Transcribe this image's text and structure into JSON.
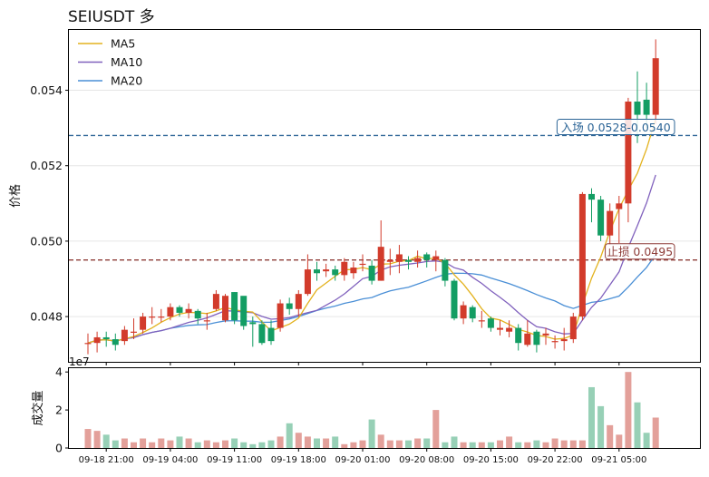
{
  "chart_data": {
    "type": "candlestick",
    "title": "SEIUSDT  多",
    "ylabel": "价格",
    "volume_ylabel": "成交量",
    "volume_scale_label": "1e7",
    "ylim": [
      0.0468,
      0.0556
    ],
    "volume_ylim": [
      0,
      4.2
    ],
    "price_ticks": [
      "0.048",
      "0.050",
      "0.052",
      "0.054"
    ],
    "volume_ticks": [
      "0",
      "2",
      "4"
    ],
    "x_tick_labels": [
      "09-18 21:00",
      "09-19 04:00",
      "09-19 11:00",
      "09-19 18:00",
      "09-20 01:00",
      "09-20 08:00",
      "09-20 15:00",
      "09-20 22:00",
      "09-21 05:00"
    ],
    "x_tick_indices": [
      2,
      9,
      16,
      23,
      30,
      37,
      44,
      51,
      58
    ],
    "legend": [
      "MA5",
      "MA10",
      "MA20"
    ],
    "legend_position": "top-left",
    "colors": {
      "up": "#d23b2b",
      "down": "#139d63",
      "up_volume": "#e3a09a",
      "down_volume": "#97d0b6",
      "ma5": "#e3b21e",
      "ma10": "#8061bd",
      "ma20": "#4a8fd6",
      "entry_line": "#2b6496",
      "stop_line": "#8e3c38"
    },
    "annotations": {
      "entry": {
        "label": "入场 0.0528-0.0540",
        "value": 0.0528
      },
      "stop": {
        "label": "止损 0.0495",
        "value": 0.0495
      }
    },
    "candles": {
      "open": [
        0.0473,
        0.0473,
        0.04745,
        0.0474,
        0.04735,
        0.0476,
        0.04765,
        0.048,
        0.048,
        0.048,
        0.04825,
        0.0481,
        0.04815,
        0.0479,
        0.0482,
        0.0479,
        0.04865,
        0.04855,
        0.04785,
        0.0478,
        0.0477,
        0.0477,
        0.04835,
        0.0482,
        0.0486,
        0.04925,
        0.0492,
        0.04925,
        0.0491,
        0.04915,
        0.0494,
        0.04935,
        0.04895,
        0.04945,
        0.04945,
        0.0495,
        0.04945,
        0.04965,
        0.0495,
        0.0495,
        0.04895,
        0.04795,
        0.04825,
        0.0479,
        0.04795,
        0.04765,
        0.0476,
        0.0477,
        0.04725,
        0.0476,
        0.0475,
        0.04735,
        0.04735,
        0.0474,
        0.048,
        0.05125,
        0.0511,
        0.05015,
        0.05085,
        0.051,
        0.0537,
        0.05375,
        0.05335
      ],
      "close": [
        0.0473,
        0.04745,
        0.0474,
        0.04725,
        0.04765,
        0.0476,
        0.048,
        0.048,
        0.048,
        0.04825,
        0.0481,
        0.0482,
        0.04795,
        0.0479,
        0.0486,
        0.04855,
        0.0479,
        0.04775,
        0.0478,
        0.0473,
        0.04735,
        0.04835,
        0.0482,
        0.0486,
        0.04925,
        0.04915,
        0.04925,
        0.0491,
        0.04945,
        0.0493,
        0.0494,
        0.04895,
        0.04985,
        0.0495,
        0.04965,
        0.04945,
        0.04955,
        0.0495,
        0.0496,
        0.04895,
        0.04795,
        0.0483,
        0.04795,
        0.0479,
        0.0477,
        0.0477,
        0.0477,
        0.0473,
        0.04755,
        0.04725,
        0.04755,
        0.04735,
        0.0474,
        0.048,
        0.05125,
        0.0511,
        0.05015,
        0.0508,
        0.051,
        0.0537,
        0.05335,
        0.05335,
        0.05485
      ],
      "high": [
        0.04755,
        0.0476,
        0.0476,
        0.04755,
        0.04775,
        0.04795,
        0.0481,
        0.04825,
        0.0482,
        0.04835,
        0.0483,
        0.04835,
        0.0482,
        0.0481,
        0.0487,
        0.0486,
        0.04865,
        0.048,
        0.048,
        0.0479,
        0.0479,
        0.04845,
        0.0485,
        0.0487,
        0.04965,
        0.04945,
        0.0494,
        0.04935,
        0.04955,
        0.04945,
        0.04965,
        0.0495,
        0.05055,
        0.0498,
        0.0499,
        0.0496,
        0.04975,
        0.0497,
        0.04975,
        0.04955,
        0.049,
        0.0484,
        0.0483,
        0.04815,
        0.048,
        0.0479,
        0.0479,
        0.0478,
        0.0479,
        0.04765,
        0.0477,
        0.0475,
        0.0477,
        0.0481,
        0.0513,
        0.0514,
        0.0512,
        0.051,
        0.0512,
        0.0538,
        0.0545,
        0.0542,
        0.05535
      ],
      "low": [
        0.047,
        0.04705,
        0.0472,
        0.0471,
        0.04725,
        0.0474,
        0.04755,
        0.0478,
        0.04785,
        0.0479,
        0.048,
        0.04795,
        0.0478,
        0.04765,
        0.04815,
        0.04785,
        0.0478,
        0.04765,
        0.0472,
        0.04725,
        0.04725,
        0.0476,
        0.04805,
        0.048,
        0.04855,
        0.04895,
        0.04905,
        0.04895,
        0.04895,
        0.049,
        0.0492,
        0.04885,
        0.04895,
        0.0491,
        0.04915,
        0.04925,
        0.0493,
        0.0493,
        0.0492,
        0.0488,
        0.0479,
        0.0478,
        0.04785,
        0.0477,
        0.0476,
        0.0475,
        0.04745,
        0.0471,
        0.0472,
        0.04705,
        0.04725,
        0.04715,
        0.0471,
        0.0473,
        0.0479,
        0.0505,
        0.05,
        0.0499,
        0.04995,
        0.0505,
        0.0526,
        0.053,
        0.0531
      ]
    },
    "volume": [
      1.0,
      0.9,
      0.7,
      0.4,
      0.5,
      0.3,
      0.5,
      0.3,
      0.5,
      0.4,
      0.6,
      0.5,
      0.3,
      0.4,
      0.3,
      0.4,
      0.5,
      0.3,
      0.2,
      0.3,
      0.4,
      0.6,
      1.3,
      0.8,
      0.6,
      0.5,
      0.5,
      0.6,
      0.2,
      0.3,
      0.4,
      1.5,
      0.7,
      0.4,
      0.4,
      0.4,
      0.5,
      0.5,
      2.0,
      0.3,
      0.6,
      0.3,
      0.3,
      0.3,
      0.3,
      0.4,
      0.6,
      0.3,
      0.3,
      0.4,
      0.3,
      0.5,
      0.4,
      0.4,
      0.4,
      3.2,
      2.2,
      1.2,
      0.7,
      4.0,
      2.4,
      0.8,
      1.6
    ]
  }
}
